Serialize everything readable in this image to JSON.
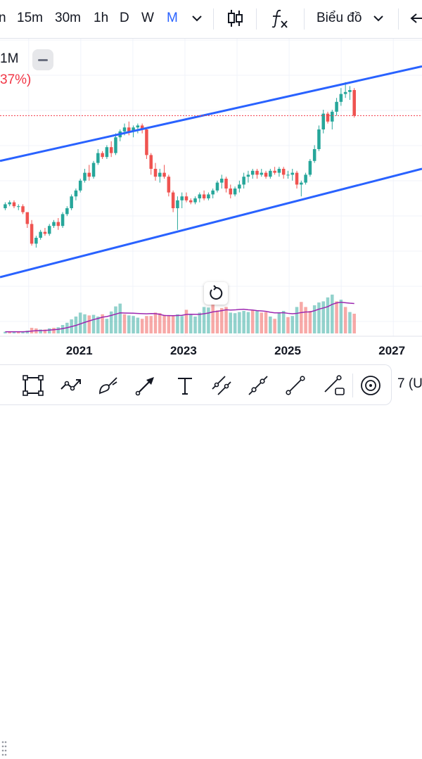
{
  "toolbar": {
    "timeframes": [
      {
        "label": "n",
        "active": false
      },
      {
        "label": "15m",
        "active": false
      },
      {
        "label": "30m",
        "active": false
      },
      {
        "label": "1h",
        "active": false
      },
      {
        "label": "D",
        "active": false
      },
      {
        "label": "W",
        "active": false
      },
      {
        "label": "M",
        "active": true
      }
    ],
    "chart_type_label": "Biểu đồ",
    "icons": [
      "chevron-down-icon",
      "candlestick-icon",
      "function-icon",
      "undo-icon"
    ]
  },
  "legend": {
    "interval_text": "1M",
    "change_text": "37%)",
    "change_color": "#f23645"
  },
  "colors": {
    "up": "#26a69a",
    "down": "#ef5350",
    "channel": "#2962ff",
    "volume_ma": "#9c27b0",
    "price_line": "#f23645"
  },
  "chart_data": {
    "type": "candlestick",
    "interval": "1M",
    "x_ticks": [
      "2021",
      "2023",
      "2025",
      "2027"
    ],
    "x_range": [
      2019.45,
      2027.55
    ],
    "y_range_relative": [
      0,
      100
    ],
    "candles_relative": [
      [
        30,
        33,
        29,
        32
      ],
      [
        32,
        34,
        31,
        33
      ],
      [
        33,
        34,
        30,
        31
      ],
      [
        31,
        32,
        29,
        31
      ],
      [
        31,
        32,
        27,
        28
      ],
      [
        28,
        28,
        20,
        22
      ],
      [
        22,
        24,
        11,
        12
      ],
      [
        12,
        16,
        10,
        15
      ],
      [
        15,
        19,
        14,
        18
      ],
      [
        18,
        20,
        16,
        17
      ],
      [
        17,
        22,
        16,
        21
      ],
      [
        21,
        24,
        20,
        23
      ],
      [
        23,
        25,
        19,
        21
      ],
      [
        21,
        28,
        20,
        27
      ],
      [
        27,
        31,
        26,
        30
      ],
      [
        30,
        37,
        29,
        36
      ],
      [
        36,
        40,
        34,
        39
      ],
      [
        39,
        45,
        38,
        44
      ],
      [
        44,
        50,
        43,
        48
      ],
      [
        48,
        52,
        44,
        46
      ],
      [
        46,
        54,
        45,
        53
      ],
      [
        53,
        60,
        52,
        58
      ],
      [
        58,
        59,
        55,
        56
      ],
      [
        56,
        62,
        55,
        61
      ],
      [
        61,
        64,
        56,
        58
      ],
      [
        58,
        68,
        57,
        66
      ],
      [
        66,
        70,
        64,
        69
      ],
      [
        69,
        73,
        67,
        71
      ],
      [
        71,
        74,
        67,
        69
      ],
      [
        69,
        72,
        66,
        71
      ],
      [
        71,
        73,
        68,
        72
      ],
      [
        72,
        73,
        68,
        70
      ],
      [
        70,
        71,
        55,
        57
      ],
      [
        57,
        58,
        47,
        50
      ],
      [
        50,
        53,
        44,
        46
      ],
      [
        46,
        50,
        43,
        48
      ],
      [
        48,
        52,
        45,
        46
      ],
      [
        46,
        47,
        36,
        38
      ],
      [
        38,
        39,
        28,
        30
      ],
      [
        30,
        36,
        19,
        34
      ],
      [
        34,
        38,
        30,
        36
      ],
      [
        36,
        38,
        33,
        34
      ],
      [
        34,
        35,
        32,
        33
      ],
      [
        33,
        36,
        32,
        35
      ],
      [
        35,
        38,
        33,
        37
      ],
      [
        37,
        39,
        34,
        35
      ],
      [
        35,
        38,
        34,
        37
      ],
      [
        37,
        40,
        35,
        39
      ],
      [
        39,
        44,
        38,
        43
      ],
      [
        43,
        47,
        40,
        45
      ],
      [
        45,
        46,
        38,
        40
      ],
      [
        40,
        42,
        35,
        37
      ],
      [
        37,
        41,
        36,
        40
      ],
      [
        40,
        44,
        38,
        42
      ],
      [
        42,
        48,
        40,
        46
      ],
      [
        46,
        49,
        43,
        47
      ],
      [
        47,
        50,
        45,
        49
      ],
      [
        49,
        50,
        45,
        47
      ],
      [
        47,
        50,
        46,
        48
      ],
      [
        48,
        49,
        45,
        46
      ],
      [
        46,
        50,
        45,
        49
      ],
      [
        49,
        51,
        47,
        48
      ],
      [
        48,
        51,
        46,
        50
      ],
      [
        50,
        51,
        45,
        47
      ],
      [
        47,
        49,
        45,
        47
      ],
      [
        47,
        50,
        44,
        48
      ],
      [
        48,
        49,
        40,
        42
      ],
      [
        42,
        44,
        36,
        43
      ],
      [
        43,
        48,
        42,
        47
      ],
      [
        47,
        55,
        46,
        54
      ],
      [
        54,
        62,
        53,
        60
      ],
      [
        60,
        72,
        59,
        70
      ],
      [
        70,
        80,
        68,
        78
      ],
      [
        78,
        79,
        73,
        74
      ],
      [
        74,
        80,
        70,
        79
      ],
      [
        79,
        86,
        77,
        84
      ],
      [
        84,
        91,
        82,
        88
      ],
      [
        88,
        94,
        86,
        89
      ],
      [
        89,
        92,
        85,
        90
      ],
      [
        90,
        91,
        76,
        77
      ]
    ],
    "volume_relative": [
      [
        3,
        1
      ],
      [
        3,
        0
      ],
      [
        3,
        1
      ],
      [
        3,
        0
      ],
      [
        3,
        1
      ],
      [
        5,
        1
      ],
      [
        10,
        0
      ],
      [
        9,
        0
      ],
      [
        7,
        1
      ],
      [
        7,
        0
      ],
      [
        9,
        1
      ],
      [
        10,
        0
      ],
      [
        11,
        1
      ],
      [
        15,
        1
      ],
      [
        19,
        1
      ],
      [
        25,
        1
      ],
      [
        30,
        1
      ],
      [
        37,
        1
      ],
      [
        34,
        1
      ],
      [
        32,
        0
      ],
      [
        33,
        1
      ],
      [
        30,
        1
      ],
      [
        34,
        0
      ],
      [
        26,
        1
      ],
      [
        39,
        1
      ],
      [
        48,
        1
      ],
      [
        53,
        1
      ],
      [
        34,
        0
      ],
      [
        32,
        1
      ],
      [
        31,
        1
      ],
      [
        28,
        1
      ],
      [
        26,
        0
      ],
      [
        31,
        0
      ],
      [
        31,
        0
      ],
      [
        37,
        0
      ],
      [
        36,
        0
      ],
      [
        33,
        0
      ],
      [
        32,
        0
      ],
      [
        31,
        0
      ],
      [
        34,
        1
      ],
      [
        31,
        1
      ],
      [
        42,
        0
      ],
      [
        33,
        1
      ],
      [
        30,
        1
      ],
      [
        37,
        1
      ],
      [
        47,
        1
      ],
      [
        46,
        1
      ],
      [
        52,
        0
      ],
      [
        41,
        0
      ],
      [
        45,
        0
      ],
      [
        47,
        0
      ],
      [
        37,
        1
      ],
      [
        36,
        1
      ],
      [
        38,
        1
      ],
      [
        40,
        1
      ],
      [
        38,
        1
      ],
      [
        41,
        0
      ],
      [
        41,
        1
      ],
      [
        37,
        0
      ],
      [
        38,
        0
      ],
      [
        30,
        1
      ],
      [
        26,
        0
      ],
      [
        37,
        1
      ],
      [
        40,
        1
      ],
      [
        29,
        0
      ],
      [
        31,
        1
      ],
      [
        47,
        1
      ],
      [
        56,
        0
      ],
      [
        47,
        0
      ],
      [
        40,
        0
      ],
      [
        50,
        1
      ],
      [
        55,
        1
      ],
      [
        57,
        1
      ],
      [
        64,
        1
      ],
      [
        69,
        1
      ],
      [
        57,
        0
      ],
      [
        60,
        1
      ],
      [
        47,
        0
      ],
      [
        38,
        1
      ],
      [
        35,
        0
      ]
    ],
    "channel_upper": [
      [
        2019.45,
        54
      ],
      [
        2027.55,
        102
      ]
    ],
    "channel_lower": [
      [
        2019.45,
        -5
      ],
      [
        2027.55,
        50
      ]
    ],
    "current_price_relative": 77
  },
  "drawing_toolbar": {
    "tools": [
      "rectangle-icon",
      "path-icon",
      "brush-icon",
      "arrow-icon",
      "text-icon",
      "parallel-channel-icon",
      "trend-angle-icon",
      "line-icon",
      "measure-icon",
      "target-icon"
    ],
    "timezone_label": "7 (UT"
  }
}
